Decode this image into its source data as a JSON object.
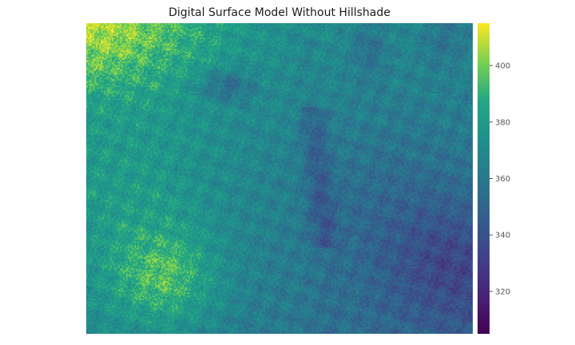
{
  "chart_data": {
    "type": "heatmap",
    "title": "Digital Surface Model Without Hillshade",
    "xlabel": "",
    "ylabel": "",
    "colormap": "viridis",
    "grid": false,
    "colorbar": {
      "position": "right",
      "vmin": 305,
      "vmax": 415,
      "ticks": [
        320,
        340,
        360,
        380,
        400
      ],
      "tick_labels": [
        "320",
        "340",
        "360",
        "380",
        "400"
      ]
    },
    "description_of_field": {
      "high_regions": [
        "upper-left corner",
        "lower-left center"
      ],
      "low_regions": [
        "lower-right",
        "dark channel running down the center",
        "upper-left-center basin",
        "upper-right notches"
      ]
    }
  }
}
